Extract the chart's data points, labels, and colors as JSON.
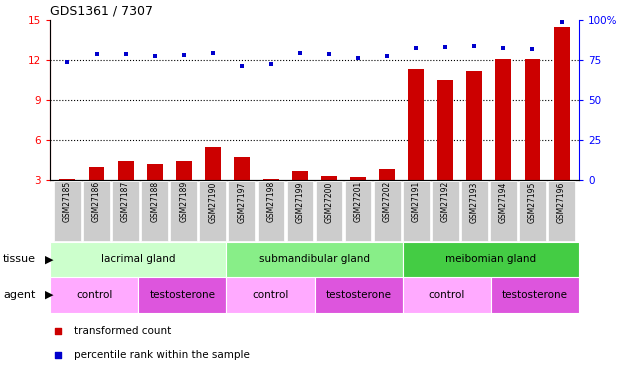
{
  "title": "GDS1361 / 7307",
  "samples": [
    "GSM27185",
    "GSM27186",
    "GSM27187",
    "GSM27188",
    "GSM27189",
    "GSM27190",
    "GSM27197",
    "GSM27198",
    "GSM27199",
    "GSM27200",
    "GSM27201",
    "GSM27202",
    "GSM27191",
    "GSM27192",
    "GSM27193",
    "GSM27194",
    "GSM27195",
    "GSM27196"
  ],
  "transformed_count": [
    3.1,
    4.0,
    4.4,
    4.2,
    4.4,
    5.5,
    4.7,
    3.1,
    3.7,
    3.3,
    3.2,
    3.8,
    11.3,
    10.5,
    11.2,
    12.1,
    12.1,
    14.5
  ],
  "percentile_rank": [
    74.0,
    78.5,
    78.8,
    77.5,
    78.2,
    79.5,
    71.5,
    72.5,
    79.5,
    79.0,
    76.0,
    77.5,
    82.5,
    83.0,
    83.5,
    82.5,
    82.0,
    98.5
  ],
  "bar_color": "#cc0000",
  "dot_color": "#0000cc",
  "ylim_left": [
    3,
    15
  ],
  "ylim_right": [
    0,
    100
  ],
  "yticks_left": [
    3,
    6,
    9,
    12,
    15
  ],
  "yticks_right": [
    0,
    25,
    50,
    75,
    100
  ],
  "ytick_labels_right": [
    "0",
    "25",
    "50",
    "75",
    "100%"
  ],
  "tissue_groups": [
    {
      "label": "lacrimal gland",
      "start": 0,
      "end": 6
    },
    {
      "label": "submandibular gland",
      "start": 6,
      "end": 12
    },
    {
      "label": "meibomian gland",
      "start": 12,
      "end": 18
    }
  ],
  "tissue_colors": [
    "#ccffcc",
    "#88ee88",
    "#44cc44"
  ],
  "agent_groups": [
    {
      "label": "control",
      "start": 0,
      "end": 3
    },
    {
      "label": "testosterone",
      "start": 3,
      "end": 6
    },
    {
      "label": "control",
      "start": 6,
      "end": 9
    },
    {
      "label": "testosterone",
      "start": 9,
      "end": 12
    },
    {
      "label": "control",
      "start": 12,
      "end": 15
    },
    {
      "label": "testosterone",
      "start": 15,
      "end": 18
    }
  ],
  "agent_colors": {
    "control": "#ffaaff",
    "testosterone": "#dd55dd"
  },
  "legend_bar_label": "transformed count",
  "legend_dot_label": "percentile rank within the sample",
  "xlabel_tissue": "tissue",
  "xlabel_agent": "agent",
  "sample_bg_color": "#cccccc",
  "grid_dotted_values": [
    6,
    9,
    12
  ]
}
